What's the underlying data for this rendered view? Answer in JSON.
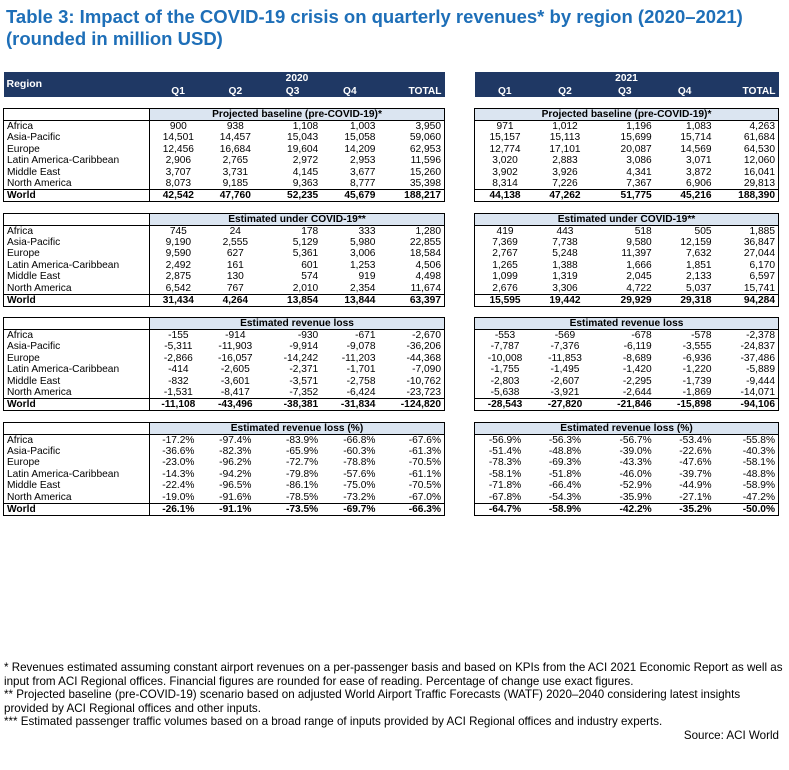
{
  "title": "Table 3: Impact of the COVID-19 crisis on quarterly revenues* by region (2020–2021) (rounded in million USD)",
  "header": {
    "region_label": "Region",
    "year_2020": "2020",
    "year_2021": "2021",
    "quarters": [
      "Q1",
      "Q2",
      "Q3",
      "Q4"
    ],
    "total_label": "TOTAL"
  },
  "regions": [
    "Africa",
    "Asia-Pacific",
    "Europe",
    "Latin America-Caribbean",
    "Middle East",
    "North America",
    "World"
  ],
  "sections": [
    {
      "title_2020": "Projected baseline (pre-COVID-19)*",
      "title_2021": "Projected baseline (pre-COVID-19)*",
      "rows_2020": [
        [
          "900",
          "938",
          "1,108",
          "1,003",
          "3,950"
        ],
        [
          "14,501",
          "14,457",
          "15,043",
          "15,058",
          "59,060"
        ],
        [
          "12,456",
          "16,684",
          "19,604",
          "14,209",
          "62,953"
        ],
        [
          "2,906",
          "2,765",
          "2,972",
          "2,953",
          "11,596"
        ],
        [
          "3,707",
          "3,731",
          "4,145",
          "3,677",
          "15,260"
        ],
        [
          "8,073",
          "9,185",
          "9,363",
          "8,777",
          "35,398"
        ],
        [
          "42,542",
          "47,760",
          "52,235",
          "45,679",
          "188,217"
        ]
      ],
      "rows_2021": [
        [
          "971",
          "1,012",
          "1,196",
          "1,083",
          "4,263"
        ],
        [
          "15,157",
          "15,113",
          "15,699",
          "15,714",
          "61,684"
        ],
        [
          "12,774",
          "17,101",
          "20,087",
          "14,569",
          "64,530"
        ],
        [
          "3,020",
          "2,883",
          "3,086",
          "3,071",
          "12,060"
        ],
        [
          "3,902",
          "3,926",
          "4,341",
          "3,872",
          "16,041"
        ],
        [
          "8,314",
          "7,226",
          "7,367",
          "6,906",
          "29,813"
        ],
        [
          "44,138",
          "47,262",
          "51,775",
          "45,216",
          "188,390"
        ]
      ]
    },
    {
      "title_2020": "Estimated under COVID-19**",
      "title_2021": "Estimated under COVID-19**",
      "rows_2020": [
        [
          "745",
          "24",
          "178",
          "333",
          "1,280"
        ],
        [
          "9,190",
          "2,555",
          "5,129",
          "5,980",
          "22,855"
        ],
        [
          "9,590",
          "627",
          "5,361",
          "3,006",
          "18,584"
        ],
        [
          "2,492",
          "161",
          "601",
          "1,253",
          "4,506"
        ],
        [
          "2,875",
          "130",
          "574",
          "919",
          "4,498"
        ],
        [
          "6,542",
          "767",
          "2,010",
          "2,354",
          "11,674"
        ],
        [
          "31,434",
          "4,264",
          "13,854",
          "13,844",
          "63,397"
        ]
      ],
      "rows_2021": [
        [
          "419",
          "443",
          "518",
          "505",
          "1,885"
        ],
        [
          "7,369",
          "7,738",
          "9,580",
          "12,159",
          "36,847"
        ],
        [
          "2,767",
          "5,248",
          "11,397",
          "7,632",
          "27,044"
        ],
        [
          "1,265",
          "1,388",
          "1,666",
          "1,851",
          "6,170"
        ],
        [
          "1,099",
          "1,319",
          "2,045",
          "2,133",
          "6,597"
        ],
        [
          "2,676",
          "3,306",
          "4,722",
          "5,037",
          "15,741"
        ],
        [
          "15,595",
          "19,442",
          "29,929",
          "29,318",
          "94,284"
        ]
      ]
    },
    {
      "title_2020": "Estimated revenue loss",
      "title_2021": "Estimated revenue loss",
      "rows_2020": [
        [
          "-155",
          "-914",
          "-930",
          "-671",
          "-2,670"
        ],
        [
          "-5,311",
          "-11,903",
          "-9,914",
          "-9,078",
          "-36,206"
        ],
        [
          "-2,866",
          "-16,057",
          "-14,242",
          "-11,203",
          "-44,368"
        ],
        [
          "-414",
          "-2,605",
          "-2,371",
          "-1,701",
          "-7,090"
        ],
        [
          "-832",
          "-3,601",
          "-3,571",
          "-2,758",
          "-10,762"
        ],
        [
          "-1,531",
          "-8,417",
          "-7,352",
          "-6,424",
          "-23,723"
        ],
        [
          "-11,108",
          "-43,496",
          "-38,381",
          "-31,834",
          "-124,820"
        ]
      ],
      "rows_2021": [
        [
          "-553",
          "-569",
          "-678",
          "-578",
          "-2,378"
        ],
        [
          "-7,787",
          "-7,376",
          "-6,119",
          "-3,555",
          "-24,837"
        ],
        [
          "-10,008",
          "-11,853",
          "-8,689",
          "-6,936",
          "-37,486"
        ],
        [
          "-1,755",
          "-1,495",
          "-1,420",
          "-1,220",
          "-5,889"
        ],
        [
          "-2,803",
          "-2,607",
          "-2,295",
          "-1,739",
          "-9,444"
        ],
        [
          "-5,638",
          "-3,921",
          "-2,644",
          "-1,869",
          "-14,071"
        ],
        [
          "-28,543",
          "-27,820",
          "-21,846",
          "-15,898",
          "-94,106"
        ]
      ]
    },
    {
      "title_2020": "Estimated revenue loss (%)",
      "title_2021": "Estimated revenue loss (%)",
      "rows_2020": [
        [
          "-17.2%",
          "-97.4%",
          "-83.9%",
          "-66.8%",
          "-67.6%"
        ],
        [
          "-36.6%",
          "-82.3%",
          "-65.9%",
          "-60.3%",
          "-61.3%"
        ],
        [
          "-23.0%",
          "-96.2%",
          "-72.7%",
          "-78.8%",
          "-70.5%"
        ],
        [
          "-14.3%",
          "-94.2%",
          "-79.8%",
          "-57.6%",
          "-61.1%"
        ],
        [
          "-22.4%",
          "-96.5%",
          "-86.1%",
          "-75.0%",
          "-70.5%"
        ],
        [
          "-19.0%",
          "-91.6%",
          "-78.5%",
          "-73.2%",
          "-67.0%"
        ],
        [
          "-26.1%",
          "-91.1%",
          "-73.5%",
          "-69.7%",
          "-66.3%"
        ]
      ],
      "rows_2021": [
        [
          "-56.9%",
          "-56.3%",
          "-56.7%",
          "-53.4%",
          "-55.8%"
        ],
        [
          "-51.4%",
          "-48.8%",
          "-39.0%",
          "-22.6%",
          "-40.3%"
        ],
        [
          "-78.3%",
          "-69.3%",
          "-43.3%",
          "-47.6%",
          "-58.1%"
        ],
        [
          "-58.1%",
          "-51.8%",
          "-46.0%",
          "-39.7%",
          "-48.8%"
        ],
        [
          "-71.8%",
          "-66.4%",
          "-52.9%",
          "-44.9%",
          "-58.9%"
        ],
        [
          "-67.8%",
          "-54.3%",
          "-35.9%",
          "-27.1%",
          "-47.2%"
        ],
        [
          "-64.7%",
          "-58.9%",
          "-42.2%",
          "-35.2%",
          "-50.0%"
        ]
      ]
    }
  ],
  "notes": [
    "* Revenues estimated assuming constant airport revenues on a per-passenger basis and based on KPIs from the ACI 2021 Economic Report as well as input from ACI Regional offices. Financial figures are rounded for ease of reading. Percentage of change use exact figures.",
    "** Projected baseline (pre-COVID-19) scenario based on adjusted World Airport Traffic Forecasts (WATF) 2020–2040 considering latest insights provided by ACI Regional offices and other inputs.",
    "*** Estimated passenger traffic volumes based on a broad range of inputs provided by ACI Regional offices and industry experts."
  ],
  "source": "Source: ACI World",
  "colors": {
    "title": "#1e6fb8",
    "header_bg": "#1f3864",
    "section_bg": "#dbe5f1"
  }
}
